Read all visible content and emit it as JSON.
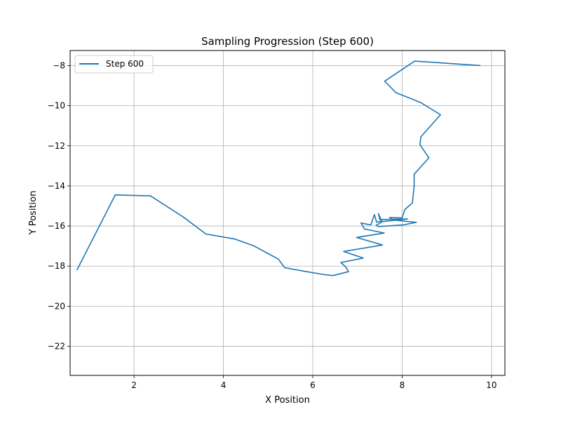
{
  "chart_data": {
    "type": "line",
    "title": "Sampling Progression (Step 600)",
    "xlabel": "X Position",
    "ylabel": "Y Position",
    "xlim": [
      0.57,
      10.3
    ],
    "ylim": [
      -23.45,
      -7.25
    ],
    "xticks": [
      2,
      4,
      6,
      8,
      10
    ],
    "yticks": [
      -22,
      -20,
      -18,
      -16,
      -14,
      -12,
      -10,
      -8
    ],
    "grid": true,
    "legend": {
      "position": "top-left"
    },
    "series": [
      {
        "name": "Step 600",
        "color": "#1f77b4",
        "points": [
          [
            0.72,
            -18.2
          ],
          [
            1.58,
            -14.45
          ],
          [
            2.37,
            -14.5
          ],
          [
            3.1,
            -15.55
          ],
          [
            3.61,
            -16.4
          ],
          [
            4.26,
            -16.65
          ],
          [
            4.67,
            -16.98
          ],
          [
            5.23,
            -17.65
          ],
          [
            5.37,
            -18.08
          ],
          [
            5.82,
            -18.26
          ],
          [
            6.27,
            -18.43
          ],
          [
            6.45,
            -18.47
          ],
          [
            6.8,
            -18.28
          ],
          [
            6.74,
            -18.05
          ],
          [
            6.63,
            -17.82
          ],
          [
            7.13,
            -17.6
          ],
          [
            6.69,
            -17.27
          ],
          [
            7.56,
            -16.95
          ],
          [
            6.98,
            -16.57
          ],
          [
            7.6,
            -16.35
          ],
          [
            7.16,
            -16.15
          ],
          [
            7.08,
            -15.85
          ],
          [
            7.3,
            -15.95
          ],
          [
            7.38,
            -15.43
          ],
          [
            7.43,
            -15.82
          ],
          [
            7.54,
            -15.75
          ],
          [
            7.47,
            -15.38
          ],
          [
            7.5,
            -15.68
          ],
          [
            8.12,
            -15.65
          ],
          [
            7.56,
            -15.78
          ],
          [
            7.42,
            -15.97
          ],
          [
            7.47,
            -16.03
          ],
          [
            8.04,
            -15.94
          ],
          [
            8.32,
            -15.82
          ],
          [
            7.8,
            -15.7
          ],
          [
            7.72,
            -15.58
          ],
          [
            8.0,
            -15.6
          ],
          [
            8.06,
            -15.18
          ],
          [
            8.23,
            -14.85
          ],
          [
            8.27,
            -14.0
          ],
          [
            8.27,
            -13.42
          ],
          [
            8.6,
            -12.6
          ],
          [
            8.4,
            -11.95
          ],
          [
            8.42,
            -11.55
          ],
          [
            8.86,
            -10.45
          ],
          [
            8.42,
            -9.85
          ],
          [
            7.86,
            -9.35
          ],
          [
            7.61,
            -8.78
          ],
          [
            8.28,
            -7.78
          ],
          [
            9.75,
            -8.0
          ]
        ]
      }
    ]
  }
}
